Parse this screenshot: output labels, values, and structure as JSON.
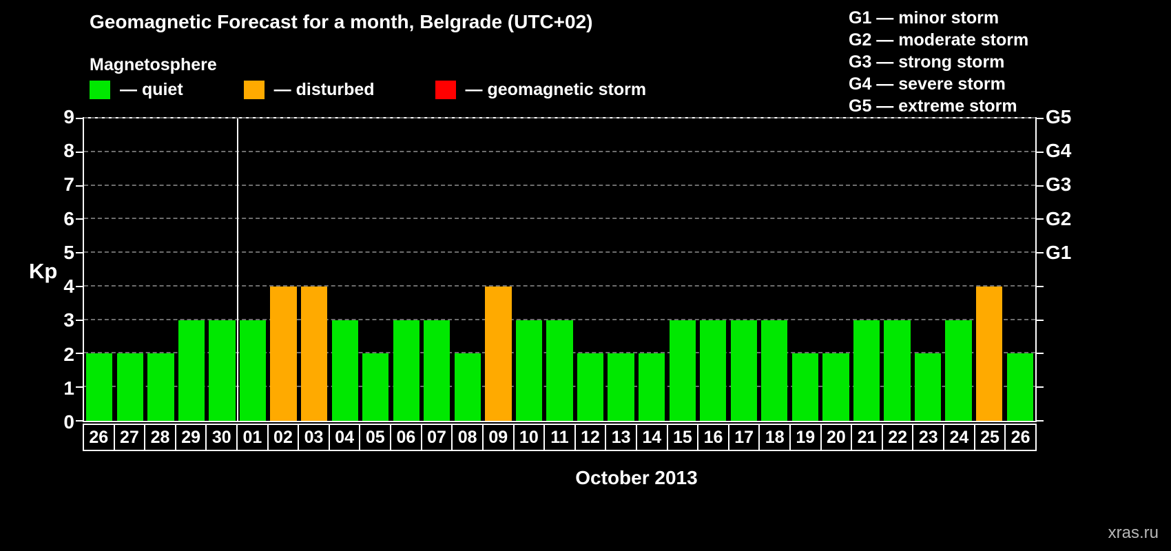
{
  "header": {
    "title": "Geomagnetic Forecast for a month, Belgrade (UTC+02)",
    "subtitle": "Magnetosphere"
  },
  "legend": {
    "quiet": "— quiet",
    "disturbed": "— disturbed",
    "storm": "— geomagnetic storm"
  },
  "g_legend": [
    "G1 — minor storm",
    "G2 — moderate storm",
    "G3 — strong storm",
    "G4 — severe storm",
    "G5 — extreme storm"
  ],
  "colors": {
    "quiet": "#00e800",
    "disturbed": "#ffaa00",
    "storm": "#ff0000",
    "grid": "#6e6e6e"
  },
  "axis": {
    "kp_label": "Kp",
    "xlabel": "October 2013",
    "y_ticks": [
      0,
      1,
      2,
      3,
      4,
      5,
      6,
      7,
      8,
      9
    ],
    "right_labels": [
      {
        "kp": 5,
        "label": "G1"
      },
      {
        "kp": 6,
        "label": "G2"
      },
      {
        "kp": 7,
        "label": "G3"
      },
      {
        "kp": 8,
        "label": "G4"
      },
      {
        "kp": 9,
        "label": "G5"
      }
    ]
  },
  "watermark": "xras.ru",
  "chart_data": {
    "type": "bar",
    "title": "Geomagnetic Forecast for a month, Belgrade (UTC+02)",
    "ylabel": "Kp",
    "xlabel": "October 2013",
    "ylim": [
      0,
      9
    ],
    "grid": "dashed horizontal at each Kp integer",
    "legend_position": "top-left",
    "categories": [
      "26",
      "27",
      "28",
      "29",
      "30",
      "01",
      "02",
      "03",
      "04",
      "05",
      "06",
      "07",
      "08",
      "09",
      "10",
      "11",
      "12",
      "13",
      "14",
      "15",
      "16",
      "17",
      "18",
      "19",
      "20",
      "21",
      "22",
      "23",
      "24",
      "25",
      "26"
    ],
    "values": [
      2,
      2,
      2,
      3,
      3,
      3,
      4,
      4,
      3,
      2,
      3,
      3,
      2,
      4,
      3,
      3,
      2,
      2,
      2,
      3,
      3,
      3,
      3,
      2,
      2,
      3,
      3,
      2,
      3,
      4,
      2
    ],
    "status": [
      "quiet",
      "quiet",
      "quiet",
      "quiet",
      "quiet",
      "quiet",
      "disturbed",
      "disturbed",
      "quiet",
      "quiet",
      "quiet",
      "quiet",
      "quiet",
      "disturbed",
      "quiet",
      "quiet",
      "quiet",
      "quiet",
      "quiet",
      "quiet",
      "quiet",
      "quiet",
      "quiet",
      "quiet",
      "quiet",
      "quiet",
      "quiet",
      "quiet",
      "quiet",
      "disturbed",
      "quiet"
    ],
    "month_separator_before_index": 5
  }
}
